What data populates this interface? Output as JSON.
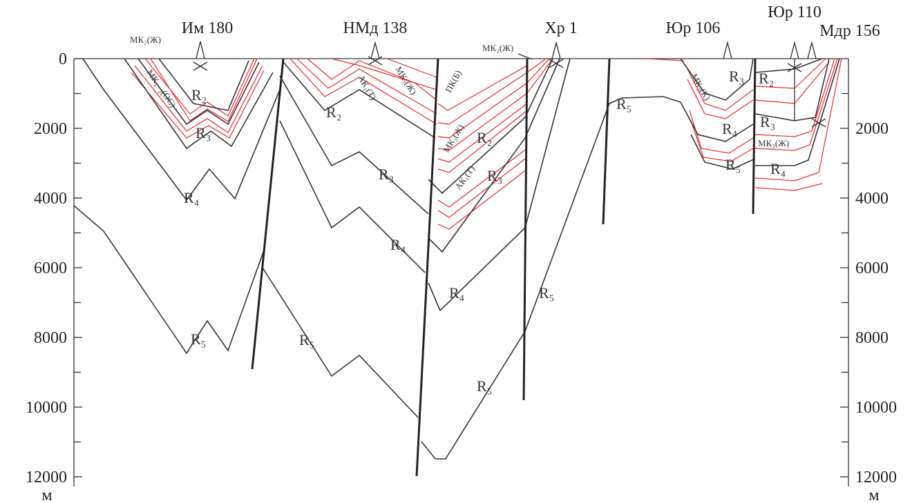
{
  "wells": [
    "Им 180",
    "НМд 138",
    "Хр 1",
    "Юр 106",
    "Юр 110",
    "Мдр 156"
  ],
  "depth_axis": {
    "ylim": [
      0,
      12000
    ],
    "unit": "м",
    "left_ticks": [
      0,
      2000,
      4000,
      6000,
      8000,
      10000,
      12000
    ],
    "right_ticks": [
      2000,
      4000,
      6000,
      8000,
      10000,
      12000
    ]
  },
  "horizon_labels": [
    "R₂",
    "R₃",
    "R₄",
    "R₅",
    "R₂",
    "R₃",
    "R₄",
    "R₅",
    "R₂",
    "R₃",
    "R₄",
    "R₅",
    "R₅",
    "R₅",
    "R₃",
    "R₂",
    "R₄",
    "R₅",
    "R₃",
    "R₄"
  ],
  "formation_labels": [
    "МК₂(Ж)",
    "МК₁₋₂(ОС)",
    "АК₁(Т)",
    "МК₃(Ж)",
    "ПК(Б)",
    "МК₃(Ж)",
    "АК₁(Т)",
    "МК₂(Ж)",
    "МК₃(К)",
    "МК₂(Ж)"
  ]
}
